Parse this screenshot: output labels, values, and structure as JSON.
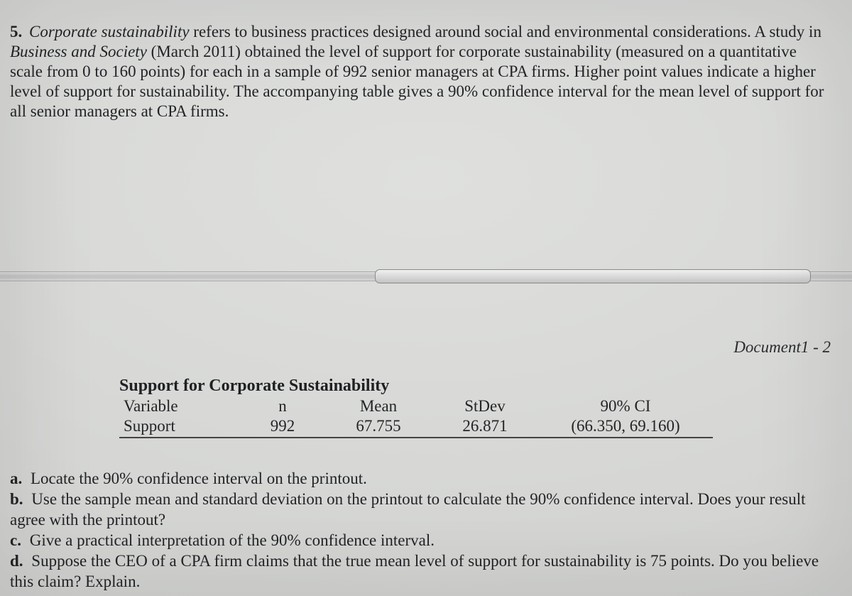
{
  "question_number": "5.",
  "intro_parts": {
    "term": "Corporate sustainability",
    "after_term": " refers to business practices designed around social and environmental considerations.  A study in ",
    "journal": "Business and Society",
    "after_journal": " (March 2011) obtained the level of support for corporate sustainability (measured on a quantitative scale from 0 to 160 points) for each in a sample of 992 senior managers at CPA firms. Higher point values indicate a higher level of support for sustainability. The accompanying table gives a 90% confidence interval for the mean level of support for all senior managers at CPA firms."
  },
  "doc_label": "Document1 - 2",
  "scrollbar": {
    "track_color_top": "#dcdcdc",
    "track_color_bottom": "#c6c6c6",
    "thumb_left_pct": 44,
    "thumb_width_pct": 51
  },
  "table": {
    "title": "Support for Corporate Sustainability",
    "columns": [
      "Variable",
      "n",
      "Mean",
      "StDev",
      "90% CI"
    ],
    "row": {
      "variable": "Support",
      "n": "992",
      "mean": "67.755",
      "stdev": "26.871",
      "ci": "(66.350, 69.160)"
    },
    "border_color": "#444444",
    "fontsize": 23,
    "title_fontsize": 24
  },
  "subquestions": {
    "a": "Locate the 90% confidence interval on the printout.",
    "b": "Use the sample mean and standard deviation on the printout to calculate the 90% confidence interval. Does your result agree with the printout?",
    "c": "Give a practical interpretation of the 90% confidence interval.",
    "d": "Suppose the CEO of a CPA firm claims that the true mean level of support for sustainability is 75 points. Do you believe this claim? Explain."
  },
  "colors": {
    "background": "#d9dad8",
    "text": "#232426"
  }
}
